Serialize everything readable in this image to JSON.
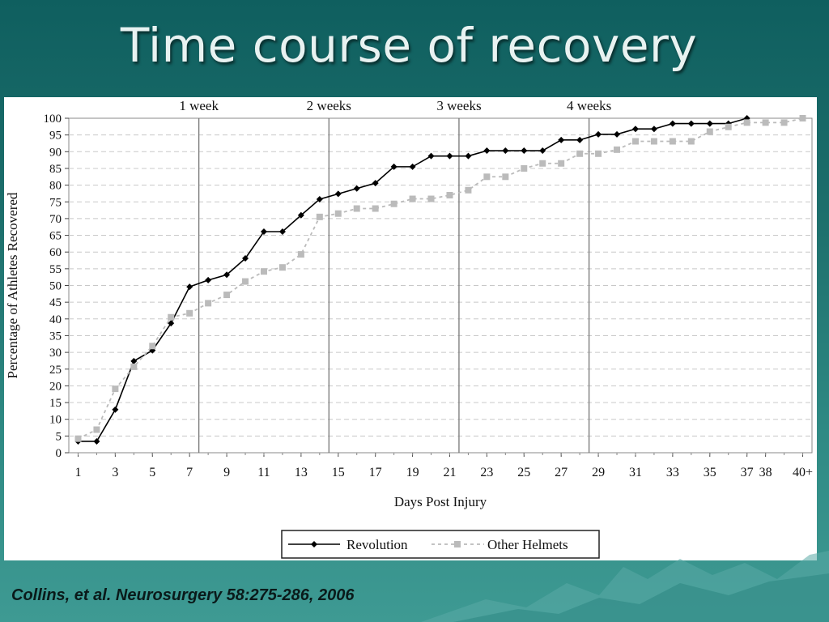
{
  "slide": {
    "title": "Time course of recovery",
    "citation": "Collins, et al. Neurosurgery 58:275-286, 2006"
  },
  "colors": {
    "background": "#1d6f6c",
    "revolution": "#000000",
    "other_helmets": "#bbbbbb"
  },
  "chart_data": {
    "type": "line",
    "xlabel": "Days Post Injury",
    "ylabel": "Percentage of Athletes Recovered",
    "ylim": [
      0,
      100
    ],
    "yticks": [
      0,
      5,
      10,
      15,
      20,
      25,
      30,
      35,
      40,
      45,
      50,
      55,
      60,
      65,
      70,
      75,
      80,
      85,
      90,
      95,
      100
    ],
    "x": [
      1,
      2,
      3,
      4,
      5,
      6,
      7,
      8,
      9,
      10,
      11,
      12,
      13,
      14,
      15,
      16,
      17,
      18,
      19,
      20,
      21,
      22,
      23,
      24,
      25,
      26,
      27,
      28,
      29,
      30,
      31,
      32,
      33,
      34,
      35,
      36,
      37,
      38,
      39,
      40
    ],
    "xtick_labels": [
      "1",
      "3",
      "5",
      "7",
      "9",
      "11",
      "13",
      "15",
      "17",
      "19",
      "21",
      "23",
      "25",
      "27",
      "29",
      "31",
      "33",
      "35",
      "37",
      "38",
      "40+"
    ],
    "xtick_positions": [
      1,
      3,
      5,
      7,
      9,
      11,
      13,
      15,
      17,
      19,
      21,
      23,
      25,
      27,
      29,
      31,
      33,
      35,
      37,
      38,
      40
    ],
    "week_markers": [
      {
        "label": "1 week",
        "x": 7.5
      },
      {
        "label": "2 weeks",
        "x": 14.5
      },
      {
        "label": "3 weeks",
        "x": 21.5
      },
      {
        "label": "4 weeks",
        "x": 28.5
      }
    ],
    "grid": true,
    "legend_position": "bottom-center",
    "series": [
      {
        "name": "Revolution",
        "marker": "diamond",
        "line": "solid",
        "x": [
          1,
          2,
          3,
          4,
          5,
          6,
          7,
          8,
          9,
          10,
          11,
          12,
          13,
          14,
          15,
          16,
          17,
          18,
          19,
          20,
          21,
          22,
          23,
          24,
          25,
          26,
          27,
          28,
          29,
          30,
          31,
          32,
          33,
          34,
          35,
          36,
          37
        ],
        "values": [
          3.4,
          3.4,
          12.9,
          27.4,
          30.6,
          38.7,
          49.6,
          51.6,
          53.2,
          58.1,
          66.1,
          66.1,
          71.0,
          75.8,
          77.4,
          79.0,
          80.6,
          85.5,
          85.5,
          88.7,
          88.7,
          88.7,
          90.3,
          90.3,
          90.3,
          90.3,
          93.5,
          93.5,
          95.2,
          95.2,
          96.8,
          96.8,
          98.4,
          98.4,
          98.4,
          98.4,
          100
        ]
      },
      {
        "name": "Other Helmets",
        "marker": "square",
        "line": "dashed",
        "x": [
          1,
          2,
          3,
          4,
          5,
          6,
          7,
          8,
          9,
          10,
          11,
          12,
          13,
          14,
          15,
          16,
          17,
          18,
          19,
          20,
          21,
          22,
          23,
          24,
          25,
          26,
          27,
          28,
          29,
          30,
          31,
          32,
          33,
          34,
          35,
          36,
          37,
          38,
          39,
          40
        ],
        "values": [
          4.2,
          6.9,
          19.1,
          25.7,
          31.9,
          40.5,
          41.7,
          44.7,
          47.2,
          51.2,
          54.2,
          55.4,
          59.3,
          70.5,
          71.5,
          73.0,
          73.0,
          74.4,
          75.9,
          75.9,
          77.0,
          78.5,
          82.5,
          82.5,
          85.0,
          86.5,
          86.5,
          89.4,
          89.4,
          90.6,
          93.1,
          93.1,
          93.1,
          93.1,
          96.0,
          97.4,
          98.7,
          98.7,
          98.7,
          100
        ]
      }
    ]
  }
}
